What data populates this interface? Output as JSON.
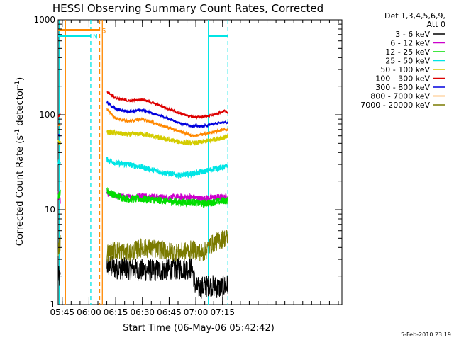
{
  "chart_data": {
    "type": "line",
    "title": "HESSI Observing Summary Count Rates, Corrected",
    "ylabel": "Corrected Count Rate (s",
    "ylabel_sup": "-1",
    "ylabel_mid": " detector",
    "ylabel_sup2": "-1",
    "ylabel_end": ")",
    "xlabel": "Start Time (06-May-06 05:42:42)",
    "yscale": "log",
    "ylim": [
      1,
      1000
    ],
    "xlim_minutes": [
      42.7,
      202
    ],
    "yticks": [
      {
        "value": 1,
        "label": "1"
      },
      {
        "value": 10,
        "label": "10"
      },
      {
        "value": 100,
        "label": "100"
      },
      {
        "value": 1000,
        "label": "1000"
      }
    ],
    "xticks": [
      {
        "minute": 45,
        "label": "05:45"
      },
      {
        "minute": 60,
        "label": "06:00"
      },
      {
        "minute": 75,
        "label": "06:15"
      },
      {
        "minute": 90,
        "label": "06:30"
      },
      {
        "minute": 105,
        "label": "06:45"
      },
      {
        "minute": 120,
        "label": "07:00"
      },
      {
        "minute": 135,
        "label": "07:15"
      }
    ],
    "legend_header": [
      "Det 1,3,4,5,6,9,",
      "Att 0"
    ],
    "legend_position": "right",
    "series": [
      {
        "name": "3 - 6 keV",
        "color": "#000000",
        "x": [
          42.7,
          44,
          46,
          66,
          70,
          75,
          82,
          90,
          100,
          110,
          118,
          120,
          122,
          128,
          133,
          138
        ],
        "y": [
          2,
          1.8,
          null,
          null,
          2.6,
          2.4,
          2.4,
          2.3,
          2.3,
          2.4,
          2.4,
          1.5,
          1.5,
          1.6,
          1.5,
          1.6
        ]
      },
      {
        "name": "6 - 12 keV",
        "color": "#cc00cc",
        "x": [
          42.7,
          44,
          46,
          66,
          70,
          75,
          82,
          90,
          100,
          110,
          118,
          124,
          130,
          136,
          138
        ],
        "y": [
          15,
          12,
          null,
          null,
          15,
          14,
          13.5,
          14,
          13.5,
          13.5,
          13.5,
          13,
          13.5,
          13.5,
          13.5
        ]
      },
      {
        "name": "12 - 25 keV",
        "color": "#00dd00",
        "x": [
          42.7,
          44,
          46,
          66,
          70,
          75,
          82,
          90,
          100,
          110,
          118,
          124,
          130,
          136,
          138
        ],
        "y": [
          14,
          15,
          null,
          null,
          16,
          14,
          13,
          13,
          12.5,
          12,
          12,
          11.5,
          12,
          12.5,
          12.5
        ]
      },
      {
        "name": "25 - 50 keV",
        "color": "#00e5e5",
        "x": [
          42.7,
          44,
          46,
          66,
          70,
          75,
          82,
          90,
          100,
          110,
          118,
          124,
          130,
          136,
          138
        ],
        "y": [
          32,
          30,
          null,
          null,
          34,
          31,
          30,
          28,
          25,
          23,
          24,
          25,
          27,
          28,
          29
        ]
      },
      {
        "name": "50 - 100 keV",
        "color": "#d4cc00",
        "x": [
          42.7,
          44,
          46,
          66,
          70,
          75,
          82,
          90,
          100,
          110,
          118,
          124,
          130,
          136,
          138
        ],
        "y": [
          52,
          50,
          null,
          null,
          66,
          64,
          62,
          63,
          57,
          52,
          50,
          52,
          55,
          58,
          60
        ]
      },
      {
        "name": "100 - 300 keV",
        "color": "#dd0000",
        "x": [
          42.7,
          44,
          46,
          66,
          70,
          75,
          82,
          90,
          100,
          110,
          118,
          124,
          130,
          136,
          138
        ],
        "y": [
          95,
          100,
          null,
          null,
          175,
          150,
          140,
          145,
          125,
          105,
          95,
          95,
          100,
          110,
          105
        ]
      },
      {
        "name": "300 - 800 keV",
        "color": "#0000dd",
        "x": [
          42.7,
          44,
          46,
          66,
          70,
          75,
          82,
          90,
          100,
          110,
          118,
          124,
          130,
          136,
          138
        ],
        "y": [
          62,
          60,
          null,
          null,
          135,
          115,
          108,
          112,
          98,
          83,
          76,
          76,
          80,
          84,
          82
        ]
      },
      {
        "name": "800 - 7000 keV",
        "color": "#ff8800",
        "x": [
          42.7,
          44,
          46,
          66,
          70,
          75,
          82,
          90,
          100,
          110,
          118,
          124,
          130,
          136,
          138
        ],
        "y": [
          75,
          80,
          null,
          null,
          115,
          92,
          85,
          90,
          78,
          68,
          60,
          62,
          66,
          70,
          68
        ]
      },
      {
        "name": "7000 - 20000 keV",
        "color": "#7a7a00",
        "x": [
          42.7,
          44,
          46,
          66,
          70,
          75,
          82,
          90,
          100,
          110,
          118,
          124,
          130,
          136,
          138
        ],
        "y": [
          4,
          4.5,
          null,
          null,
          3.5,
          3.8,
          3.5,
          4,
          3.8,
          3.5,
          3.8,
          3.5,
          4.5,
          5,
          5
        ]
      }
    ],
    "flags": [
      {
        "label": "S",
        "color": "#ff8800",
        "x_start": 42.7,
        "x_end": 66,
        "y": 780
      },
      {
        "label": "N",
        "color": "#00e5e5",
        "x_start": 42.7,
        "x_end": 61,
        "y": 680
      },
      {
        "label": "",
        "color": "#00e5e5",
        "x_start": 127,
        "x_end": 138,
        "y": 680
      }
    ],
    "vlines": [
      {
        "minute": 43.3,
        "color": "#00e5e5",
        "dashed": false
      },
      {
        "minute": 46.8,
        "color": "#ff8800",
        "dashed": false
      },
      {
        "minute": 61,
        "color": "#00e5e5",
        "dashed": true
      },
      {
        "minute": 66,
        "color": "#ff8800",
        "dashed": true
      },
      {
        "minute": 67.5,
        "color": "#ff8800",
        "dashed": false
      },
      {
        "minute": 127,
        "color": "#00e5e5",
        "dashed": false
      },
      {
        "minute": 138,
        "color": "#00e5e5",
        "dashed": true
      }
    ],
    "footer": "5-Feb-2010 23:19"
  }
}
